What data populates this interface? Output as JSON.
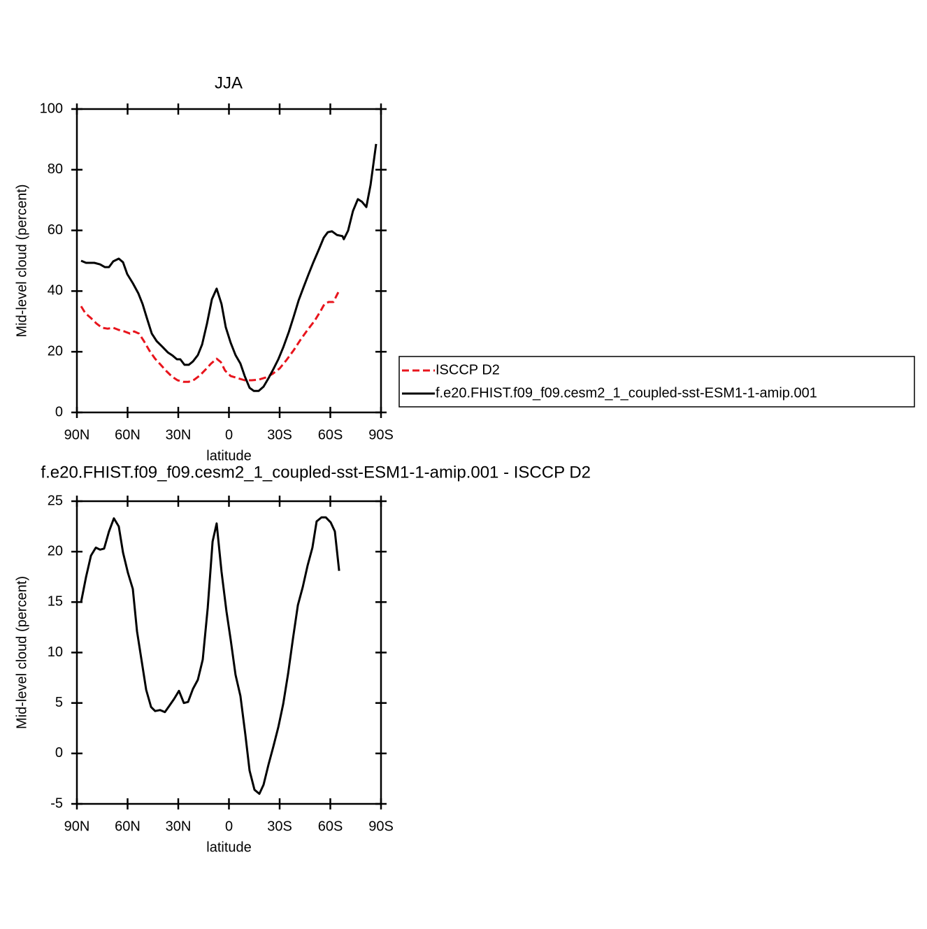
{
  "chart_data": [
    {
      "type": "line",
      "title": "JJA",
      "xlabel": "latitude",
      "ylabel": "Mid-level cloud (percent)",
      "xlim": [
        90,
        -90
      ],
      "xticks": [
        {
          "value": 90,
          "label": "90N"
        },
        {
          "value": 60,
          "label": "60N"
        },
        {
          "value": 30,
          "label": "30N"
        },
        0,
        {
          "value": -30,
          "label": "30S"
        },
        {
          "value": -60,
          "label": "60S"
        },
        {
          "value": -90,
          "label": "90S"
        }
      ],
      "ylim": [
        0,
        100
      ],
      "yticks": [
        0,
        20,
        40,
        60,
        80,
        100
      ],
      "legend": "right",
      "series": [
        {
          "name": "ISCCP D2",
          "color": "#e8141c",
          "linestyle": "dashed",
          "x": [
            87.5,
            85.0,
            81.7,
            78.4,
            75.1,
            71.8,
            68.5,
            65.2,
            61.9,
            58.6,
            56.1,
            53.2,
            50.3,
            47.0,
            43.7,
            40.4,
            37.0,
            33.7,
            30.4,
            27.1,
            23.8,
            20.5,
            17.2,
            13.9,
            10.6,
            7.3,
            4.8,
            2.3,
            -1.0,
            -5.2,
            -9.3,
            -13.4,
            -17.6,
            -21.7,
            -25.8,
            -30.0,
            -34.1,
            -38.3,
            -42.4,
            -46.5,
            -50.7,
            -54.0,
            -56.5,
            -59.0,
            -61.8,
            -64.7
          ],
          "values": [
            35.0,
            32.7,
            31.1,
            29.3,
            27.9,
            27.6,
            27.9,
            27.2,
            26.7,
            26.0,
            26.7,
            26.0,
            23.5,
            20.3,
            17.7,
            15.7,
            13.6,
            11.8,
            10.6,
            10.1,
            10.1,
            10.8,
            12.2,
            14.1,
            16.1,
            17.7,
            16.6,
            13.8,
            12.0,
            11.3,
            10.6,
            10.6,
            10.8,
            11.5,
            12.7,
            14.5,
            17.3,
            20.5,
            24.0,
            27.2,
            30.2,
            33.2,
            35.7,
            36.4,
            36.4,
            39.6
          ]
        },
        {
          "name": "f.e20.FHIST.f09_f09.cesm2_1_coupled-sst-ESM1-1-amip.001",
          "color": "#000000",
          "linestyle": "solid",
          "x": [
            87.5,
            84.6,
            79.7,
            76.3,
            73.5,
            71.0,
            68.5,
            65.2,
            62.7,
            60.2,
            56.9,
            53.6,
            51.1,
            48.6,
            45.7,
            42.8,
            39.5,
            36.2,
            33.3,
            30.8,
            28.8,
            26.3,
            23.8,
            21.3,
            18.4,
            15.9,
            13.0,
            10.1,
            7.3,
            4.4,
            1.9,
            -1.0,
            -3.9,
            -6.8,
            -9.3,
            -12.2,
            -14.7,
            -17.6,
            -20.5,
            -23.4,
            -26.3,
            -29.2,
            -32.1,
            -35.4,
            -38.3,
            -41.2,
            -44.1,
            -47.0,
            -49.8,
            -53.2,
            -56.1,
            -58.5,
            -61.0,
            -63.9,
            -67.2,
            -68.0,
            -70.5,
            -73.4,
            -76.3,
            -78.8,
            -81.3,
            -83.8,
            -87.1
          ],
          "values": [
            50.0,
            49.3,
            49.3,
            48.8,
            47.9,
            47.9,
            49.8,
            50.7,
            49.5,
            45.6,
            42.6,
            39.2,
            35.7,
            31.1,
            26.0,
            23.5,
            21.7,
            19.8,
            18.7,
            17.5,
            17.5,
            15.7,
            15.7,
            16.8,
            18.9,
            22.4,
            29.3,
            37.3,
            40.8,
            35.7,
            28.1,
            23.0,
            18.9,
            16.1,
            12.0,
            8.1,
            7.1,
            7.1,
            8.5,
            11.3,
            14.3,
            17.5,
            21.4,
            26.5,
            31.6,
            36.9,
            41.2,
            45.4,
            49.3,
            53.7,
            57.6,
            59.4,
            59.7,
            58.5,
            58.1,
            57.1,
            59.9,
            66.4,
            70.3,
            69.4,
            67.7,
            74.9,
            88.5
          ]
        }
      ]
    },
    {
      "type": "line",
      "title": "f.e20.FHIST.f09_f09.cesm2_1_coupled-sst-ESM1-1-amip.001 - ISCCP D2",
      "xlabel": "latitude",
      "ylabel": "Mid-level cloud (percent)",
      "xlim": [
        90,
        -90
      ],
      "xticks": [
        {
          "value": 90,
          "label": "90N"
        },
        {
          "value": 60,
          "label": "60N"
        },
        {
          "value": 30,
          "label": "30N"
        },
        0,
        {
          "value": -30,
          "label": "30S"
        },
        {
          "value": -60,
          "label": "60S"
        },
        {
          "value": -90,
          "label": "90S"
        }
      ],
      "ylim": [
        -5,
        25
      ],
      "yticks": [
        -5,
        0,
        5,
        10,
        15,
        20,
        25
      ],
      "series": [
        {
          "color": "#000000",
          "linestyle": "solid",
          "x": [
            87.5,
            84.6,
            81.7,
            78.8,
            76.3,
            73.9,
            71.0,
            68.1,
            65.2,
            62.7,
            59.8,
            56.9,
            54.4,
            51.5,
            49.0,
            46.1,
            43.7,
            40.8,
            37.9,
            35.4,
            32.5,
            29.6,
            26.7,
            24.2,
            21.3,
            18.4,
            15.5,
            12.6,
            9.7,
            7.3,
            4.4,
            1.5,
            -1.0,
            -3.9,
            -6.8,
            -9.7,
            -12.2,
            -15.1,
            -18.0,
            -20.5,
            -23.4,
            -26.3,
            -29.2,
            -32.1,
            -35.0,
            -37.9,
            -40.8,
            -43.7,
            -46.5,
            -49.4,
            -51.9,
            -54.8,
            -57.3,
            -60.2,
            -62.7,
            -65.2
          ],
          "values": [
            15.0,
            17.5,
            19.6,
            20.4,
            20.2,
            20.3,
            22.0,
            23.3,
            22.5,
            19.9,
            17.9,
            16.3,
            12.1,
            9.0,
            6.3,
            4.6,
            4.2,
            4.3,
            4.1,
            4.7,
            5.4,
            6.2,
            5.0,
            5.1,
            6.4,
            7.3,
            9.3,
            14.4,
            21.0,
            22.8,
            18.0,
            14.1,
            11.3,
            7.8,
            5.7,
            1.9,
            -1.7,
            -3.6,
            -4.0,
            -3.1,
            -1.1,
            0.7,
            2.6,
            4.9,
            7.9,
            11.4,
            14.7,
            16.5,
            18.6,
            20.4,
            23.0,
            23.4,
            23.4,
            22.9,
            22.0,
            18.1
          ]
        }
      ]
    }
  ]
}
